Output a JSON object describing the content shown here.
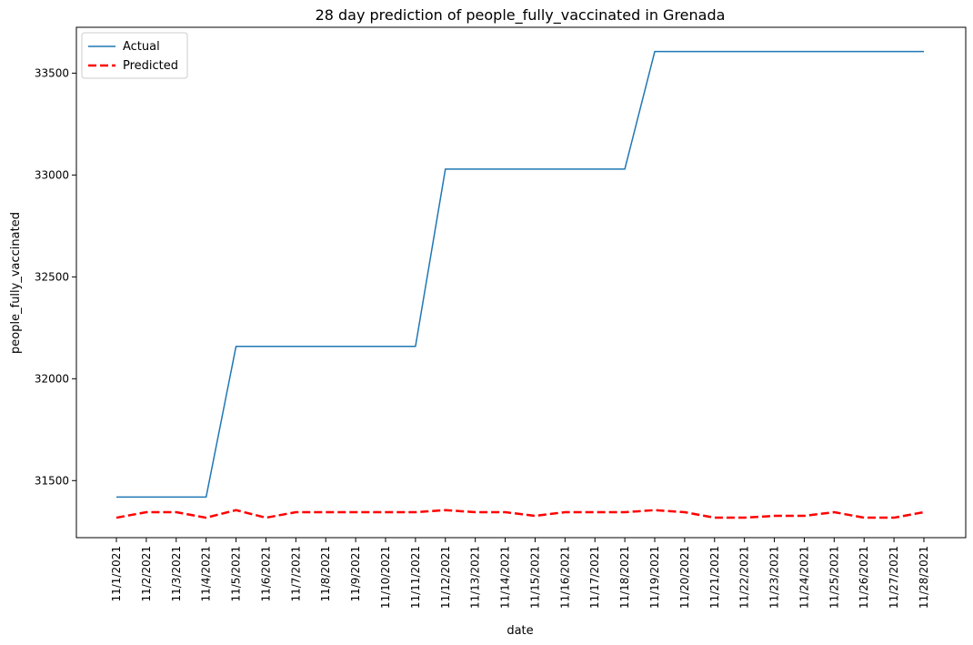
{
  "chart_data": {
    "type": "line",
    "title": "28 day prediction of people_fully_vaccinated in Grenada",
    "xlabel": "date",
    "ylabel": "people_fully_vaccinated",
    "categories": [
      "11/1/2021",
      "11/2/2021",
      "11/3/2021",
      "11/4/2021",
      "11/5/2021",
      "11/6/2021",
      "11/7/2021",
      "11/8/2021",
      "11/9/2021",
      "11/10/2021",
      "11/11/2021",
      "11/12/2021",
      "11/13/2021",
      "11/14/2021",
      "11/15/2021",
      "11/16/2021",
      "11/17/2021",
      "11/18/2021",
      "11/19/2021",
      "11/20/2021",
      "11/21/2021",
      "11/22/2021",
      "11/23/2021",
      "11/24/2021",
      "11/25/2021",
      "11/26/2021",
      "11/27/2021",
      "11/28/2021"
    ],
    "ylim": [
      31220,
      33725
    ],
    "yticks": [
      31500,
      32000,
      32500,
      33000,
      33500
    ],
    "grid": false,
    "legend_position": "top-left",
    "series": [
      {
        "name": "Actual",
        "color": "#1f77b4",
        "dash": "solid",
        "values": [
          31419,
          31419,
          31419,
          31419,
          32159,
          32159,
          32159,
          32159,
          32159,
          32159,
          32159,
          33029,
          33029,
          33029,
          33029,
          33029,
          33029,
          33029,
          33606,
          33606,
          33606,
          33606,
          33606,
          33606,
          33606,
          33606,
          33606,
          33606
        ]
      },
      {
        "name": "Predicted",
        "color": "#ff0000",
        "dash": "dashed",
        "values": [
          31318,
          31345,
          31345,
          31318,
          31355,
          31318,
          31345,
          31345,
          31345,
          31345,
          31345,
          31355,
          31345,
          31345,
          31327,
          31345,
          31345,
          31345,
          31355,
          31345,
          31318,
          31318,
          31327,
          31327,
          31345,
          31318,
          31318,
          31345
        ]
      }
    ]
  }
}
